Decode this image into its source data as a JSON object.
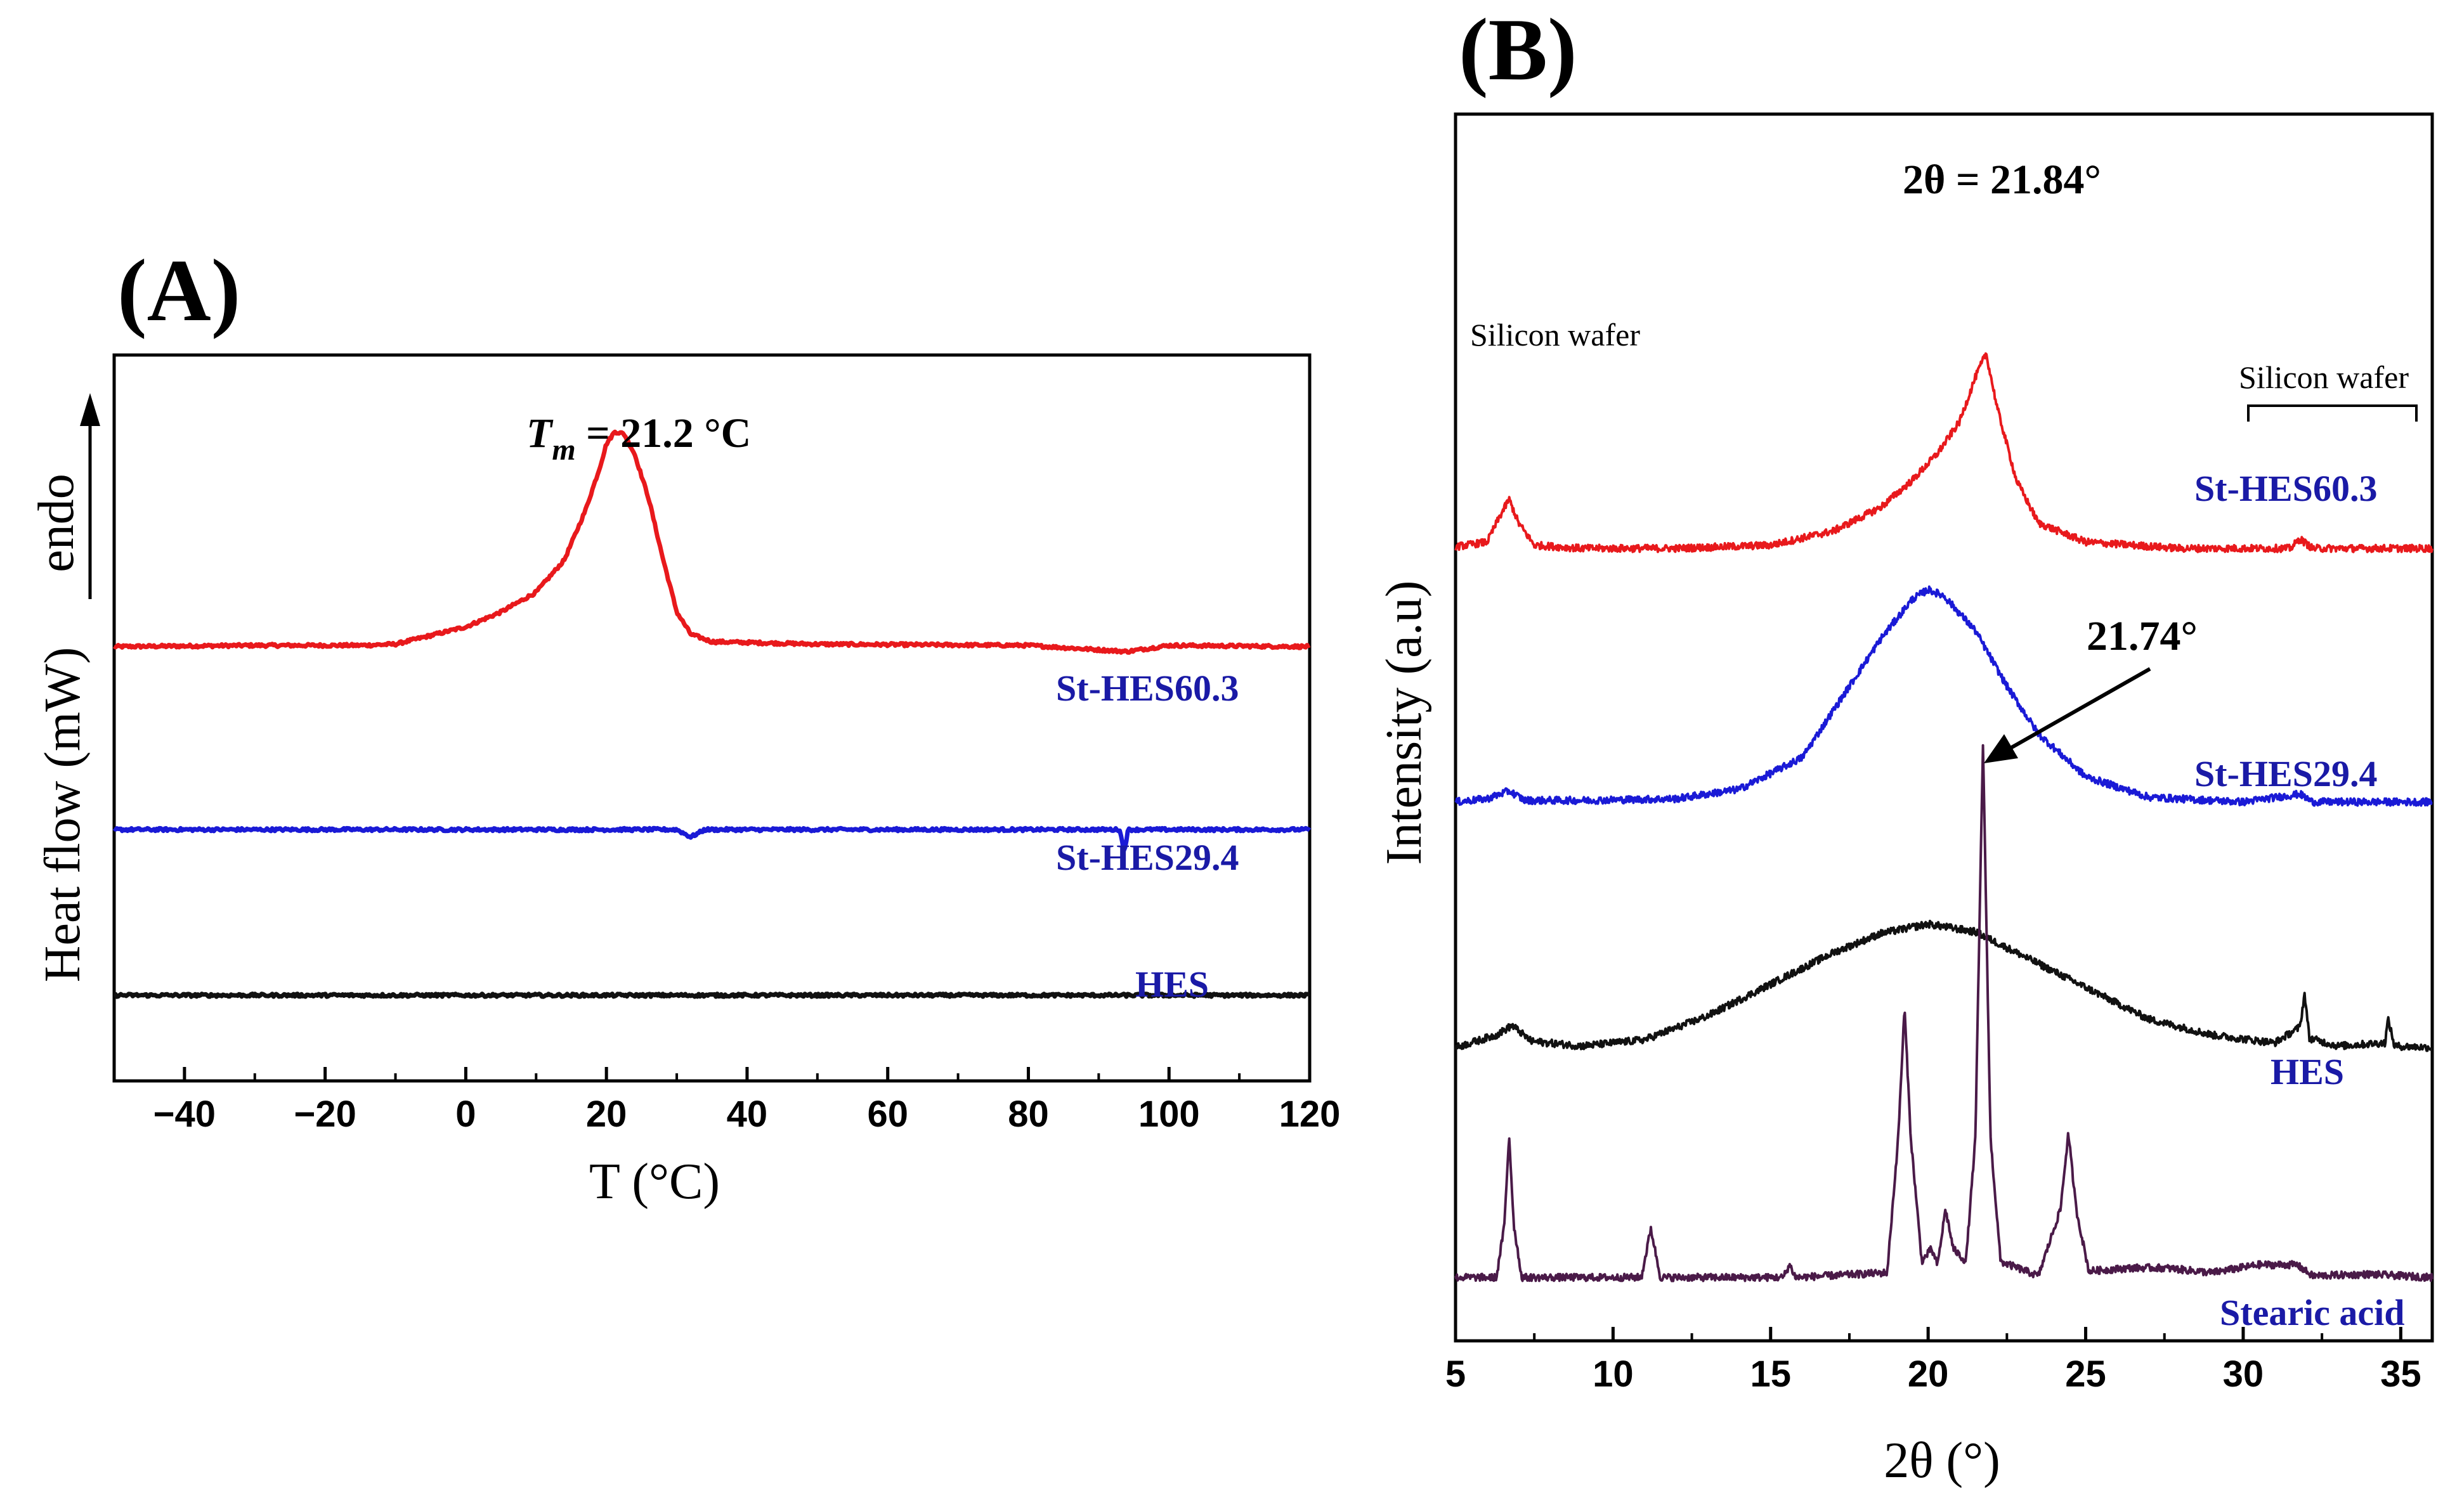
{
  "chart_data": [
    {
      "type": "line",
      "panel": "(A)",
      "title": "",
      "xlabel": "T (°C)",
      "ylabel": "Heat flow (mW)",
      "xlim": [
        -50,
        120
      ],
      "xticks": [
        -40,
        -20,
        0,
        20,
        40,
        60,
        80,
        100,
        120
      ],
      "yticks_shown": false,
      "y_direction_label": "endo",
      "peak_annotation": {
        "label_prefix": "T",
        "label_sub": "m",
        "label_rest": " = 21.2 °C",
        "x": 21.2
      },
      "series": [
        {
          "name": "St-HES60.3",
          "color": "#e8191c",
          "offset": 0.0,
          "x": [
            -50,
            -30,
            -15,
            -10,
            0,
            5,
            10,
            14,
            17,
            19,
            20,
            21.2,
            22.5,
            24,
            26,
            28,
            30,
            32,
            35,
            50,
            80,
            94,
            100,
            120
          ],
          "y": [
            0,
            0.005,
            0.005,
            0.01,
            0.08,
            0.14,
            0.22,
            0.35,
            0.55,
            0.72,
            0.82,
            0.87,
            0.86,
            0.78,
            0.6,
            0.36,
            0.14,
            0.05,
            0.02,
            0.01,
            0.005,
            -0.02,
            0.005,
            0
          ]
        },
        {
          "name": "St-HES29.4",
          "color": "#1a1ad6",
          "offset": -0.74,
          "x": [
            -50,
            0,
            30,
            32,
            34,
            50,
            93,
            93.6,
            94.2,
            100,
            120
          ],
          "y": [
            0,
            0,
            0,
            -0.03,
            0,
            0,
            0,
            -0.09,
            0,
            0,
            0
          ]
        },
        {
          "name": "HES",
          "color": "#111111",
          "offset": -1.41,
          "x": [
            -50,
            0,
            40,
            80,
            120
          ],
          "y": [
            0,
            0,
            0,
            0,
            0
          ]
        }
      ]
    },
    {
      "type": "line",
      "panel": "(B)",
      "title": "",
      "xlabel": "2θ (°)",
      "ylabel": "Intensity (a.u)",
      "xlim": [
        5,
        36
      ],
      "xticks": [
        5,
        10,
        15,
        20,
        25,
        30,
        35
      ],
      "yticks_shown": false,
      "annotations": [
        {
          "text": "2θ = 21.84°",
          "x": 21.84,
          "series": "St-HES60.3"
        },
        {
          "text": "21.74°",
          "x": 21.74,
          "series": "Stearic acid",
          "arrow": true
        },
        {
          "text": "Silicon wafer",
          "x": 6.7,
          "series": "St-HES60.3"
        },
        {
          "text": "Silicon wafer",
          "x_range": [
            30.3,
            35.7
          ],
          "series": "St-HES60.3",
          "bracket": true
        }
      ],
      "series": [
        {
          "name": "St-HES60.3",
          "color": "#e8191c",
          "offset": 4.6,
          "x": [
            5,
            6,
            6.4,
            6.7,
            7,
            7.5,
            9,
            12,
            15,
            17,
            18.5,
            19.5,
            20.3,
            21,
            21.5,
            21.84,
            22.2,
            22.8,
            23.5,
            25,
            28,
            31.5,
            31.8,
            32.2,
            36
          ],
          "y": [
            0.03,
            0.06,
            0.22,
            0.33,
            0.18,
            0.04,
            0.02,
            0.02,
            0.04,
            0.13,
            0.28,
            0.45,
            0.62,
            0.82,
            1.1,
            1.25,
            0.9,
            0.45,
            0.18,
            0.06,
            0.02,
            0.02,
            0.08,
            0.02,
            0.02
          ]
        },
        {
          "name": "St-HES29.4",
          "color": "#1a1ad6",
          "offset": 3.0,
          "x": [
            5,
            6,
            6.7,
            7.2,
            9,
            12,
            14,
            16,
            17.5,
            18.5,
            19.5,
            20,
            20.5,
            21.5,
            22.5,
            23.5,
            25,
            27,
            30,
            31.8,
            32.2,
            36
          ],
          "y": [
            0.02,
            0.04,
            0.09,
            0.03,
            0.03,
            0.04,
            0.1,
            0.3,
            0.75,
            1.05,
            1.3,
            1.36,
            1.32,
            1.1,
            0.75,
            0.45,
            0.18,
            0.05,
            0.02,
            0.07,
            0.02,
            0.02
          ]
        },
        {
          "name": "HES",
          "color": "#111111",
          "offset": 1.45,
          "x": [
            5,
            6.3,
            6.8,
            7.4,
            9,
            11,
            13,
            15,
            17,
            18.5,
            20,
            21.5,
            23,
            25,
            27,
            29,
            31,
            31.8,
            31.95,
            32.1,
            33,
            34.5,
            34.6,
            34.8,
            36
          ],
          "y": [
            0.02,
            0.1,
            0.16,
            0.06,
            0.03,
            0.07,
            0.22,
            0.42,
            0.62,
            0.74,
            0.8,
            0.75,
            0.6,
            0.4,
            0.2,
            0.1,
            0.05,
            0.15,
            0.36,
            0.08,
            0.03,
            0.05,
            0.2,
            0.03,
            0.02
          ]
        },
        {
          "name": "Stearic acid",
          "color": "#4a1a48",
          "offset": 0.0,
          "x": [
            5,
            6.3,
            6.55,
            6.7,
            6.85,
            7.1,
            9,
            10.9,
            11.2,
            11.5,
            15.4,
            15.6,
            15.8,
            18.7,
            19.05,
            19.25,
            19.45,
            19.8,
            20.1,
            20.3,
            20.55,
            20.8,
            21.2,
            21.5,
            21.74,
            21.98,
            22.3,
            23.5,
            24.2,
            24.45,
            24.7,
            25.1,
            26.5,
            27.5,
            29,
            30.5,
            31.7,
            32.2,
            34,
            36
          ],
          "y": [
            0.02,
            0.02,
            0.35,
            0.92,
            0.35,
            0.02,
            0.02,
            0.02,
            0.33,
            0.02,
            0.02,
            0.1,
            0.02,
            0.05,
            0.9,
            1.72,
            0.9,
            0.12,
            0.2,
            0.1,
            0.45,
            0.2,
            0.12,
            0.9,
            3.39,
            0.9,
            0.12,
            0.03,
            0.45,
            0.93,
            0.45,
            0.06,
            0.08,
            0.08,
            0.05,
            0.1,
            0.1,
            0.03,
            0.04,
            0.02
          ]
        }
      ]
    }
  ]
}
